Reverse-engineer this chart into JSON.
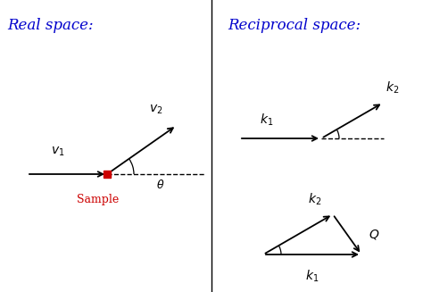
{
  "bg_color": "#ffffff",
  "title_color": "#0000cc",
  "title_fontsize": 12,
  "label_fontsize": 10,
  "sample_color": "#cc0000",
  "arrow_color": "#000000",
  "fig_width": 4.74,
  "fig_height": 3.27,
  "real_title": "Real space:",
  "recip_title": "Reciprocal space:"
}
